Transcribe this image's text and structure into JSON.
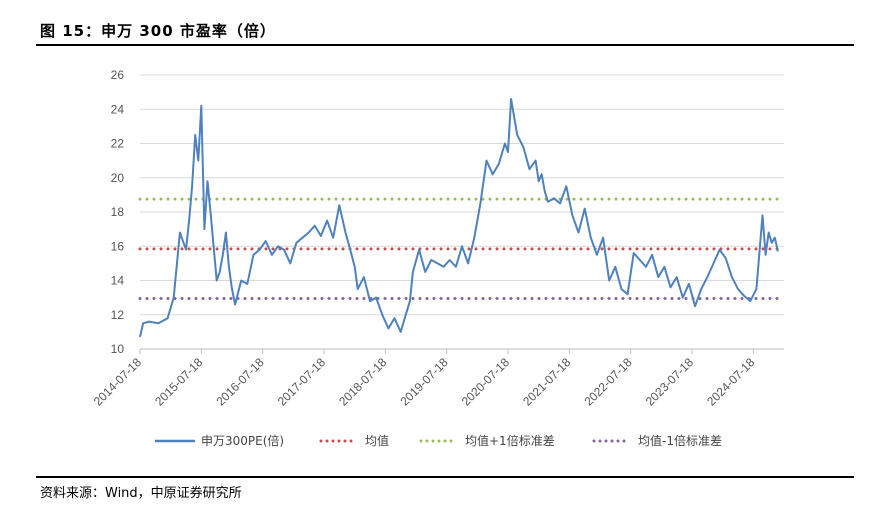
{
  "figure_title": "图 15：申万 300 市盈率（倍）",
  "source_note": "资料来源：Wind，中原证券研究所",
  "chart_data": {
    "type": "line",
    "y_ticks": [
      10,
      12,
      14,
      16,
      18,
      20,
      22,
      24,
      26
    ],
    "ylim": [
      10,
      26
    ],
    "x_ticks": [
      "2014-07-18",
      "2015-07-18",
      "2016-07-18",
      "2017-07-18",
      "2018-07-18",
      "2019-07-18",
      "2020-07-18",
      "2021-07-18",
      "2022-07-18",
      "2023-07-18",
      "2024-07-18"
    ],
    "grid": true,
    "legend_position": "bottom",
    "series": [
      {
        "name": "申万300PE(倍)",
        "style": "solid",
        "color": "#4f81bd",
        "x": [
          2014.55,
          2014.6,
          2014.7,
          2014.85,
          2015.0,
          2015.1,
          2015.2,
          2015.3,
          2015.35,
          2015.4,
          2015.45,
          2015.5,
          2015.55,
          2015.6,
          2015.65,
          2015.7,
          2015.75,
          2015.8,
          2015.85,
          2015.9,
          2015.95,
          2016.0,
          2016.05,
          2016.1,
          2016.2,
          2016.3,
          2016.4,
          2016.5,
          2016.6,
          2016.7,
          2016.8,
          2016.9,
          2017.0,
          2017.1,
          2017.2,
          2017.3,
          2017.4,
          2017.5,
          2017.6,
          2017.7,
          2017.8,
          2017.9,
          2018.0,
          2018.05,
          2018.1,
          2018.2,
          2018.3,
          2018.4,
          2018.5,
          2018.6,
          2018.7,
          2018.8,
          2018.9,
          2018.95,
          2019.0,
          2019.1,
          2019.2,
          2019.3,
          2019.4,
          2019.5,
          2019.6,
          2019.7,
          2019.8,
          2019.9,
          2020.0,
          2020.1,
          2020.2,
          2020.3,
          2020.4,
          2020.5,
          2020.55,
          2020.6,
          2020.7,
          2020.8,
          2020.9,
          2021.0,
          2021.05,
          2021.1,
          2021.15,
          2021.2,
          2021.3,
          2021.4,
          2021.5,
          2021.6,
          2021.7,
          2021.8,
          2021.9,
          2022.0,
          2022.1,
          2022.2,
          2022.3,
          2022.4,
          2022.5,
          2022.6,
          2022.7,
          2022.8,
          2022.9,
          2023.0,
          2023.1,
          2023.2,
          2023.3,
          2023.4,
          2023.5,
          2023.6,
          2023.7,
          2023.8,
          2023.9,
          2024.0,
          2024.1,
          2024.2,
          2024.3,
          2024.4,
          2024.5,
          2024.6,
          2024.7,
          2024.75,
          2024.8,
          2024.85,
          2024.9,
          2024.95
        ],
        "values": [
          10.7,
          11.5,
          11.6,
          11.5,
          11.8,
          13.0,
          16.8,
          15.8,
          17.5,
          19.5,
          22.5,
          21.0,
          24.2,
          17.0,
          19.8,
          18.0,
          16.0,
          14.0,
          14.5,
          15.5,
          16.8,
          14.8,
          13.5,
          12.6,
          14.0,
          13.8,
          15.5,
          15.8,
          16.3,
          15.5,
          16.0,
          15.8,
          15.0,
          16.2,
          16.5,
          16.8,
          17.2,
          16.6,
          17.5,
          16.5,
          18.4,
          16.8,
          15.5,
          14.8,
          13.5,
          14.2,
          12.8,
          13.0,
          12.0,
          11.2,
          11.8,
          11.0,
          12.2,
          12.8,
          14.5,
          15.8,
          14.5,
          15.2,
          15.0,
          14.8,
          15.2,
          14.8,
          16.0,
          15.0,
          16.5,
          18.5,
          21.0,
          20.2,
          20.8,
          22.0,
          21.5,
          24.6,
          22.5,
          21.8,
          20.5,
          21.0,
          19.8,
          20.2,
          19.2,
          18.6,
          18.8,
          18.5,
          19.5,
          17.8,
          16.8,
          18.2,
          16.5,
          15.5,
          16.5,
          14.0,
          14.8,
          13.5,
          13.2,
          15.6,
          15.2,
          14.8,
          15.5,
          14.2,
          14.8,
          13.6,
          14.2,
          13.0,
          13.8,
          12.5,
          13.5,
          14.2,
          15.0,
          15.8,
          15.3,
          14.2,
          13.5,
          13.1,
          12.8,
          13.5,
          17.8,
          15.5,
          16.8,
          16.2,
          16.5,
          15.7
        ]
      },
      {
        "name": "均值",
        "style": "dotted",
        "color": "#c0504d",
        "value": 15.85
      },
      {
        "name": "均值+1倍标准差",
        "style": "dotted",
        "color": "#9bbb59",
        "value": 18.75
      },
      {
        "name": "均值-1倍标准差",
        "style": "dotted",
        "color": "#8064a2",
        "value": 12.95
      }
    ]
  }
}
